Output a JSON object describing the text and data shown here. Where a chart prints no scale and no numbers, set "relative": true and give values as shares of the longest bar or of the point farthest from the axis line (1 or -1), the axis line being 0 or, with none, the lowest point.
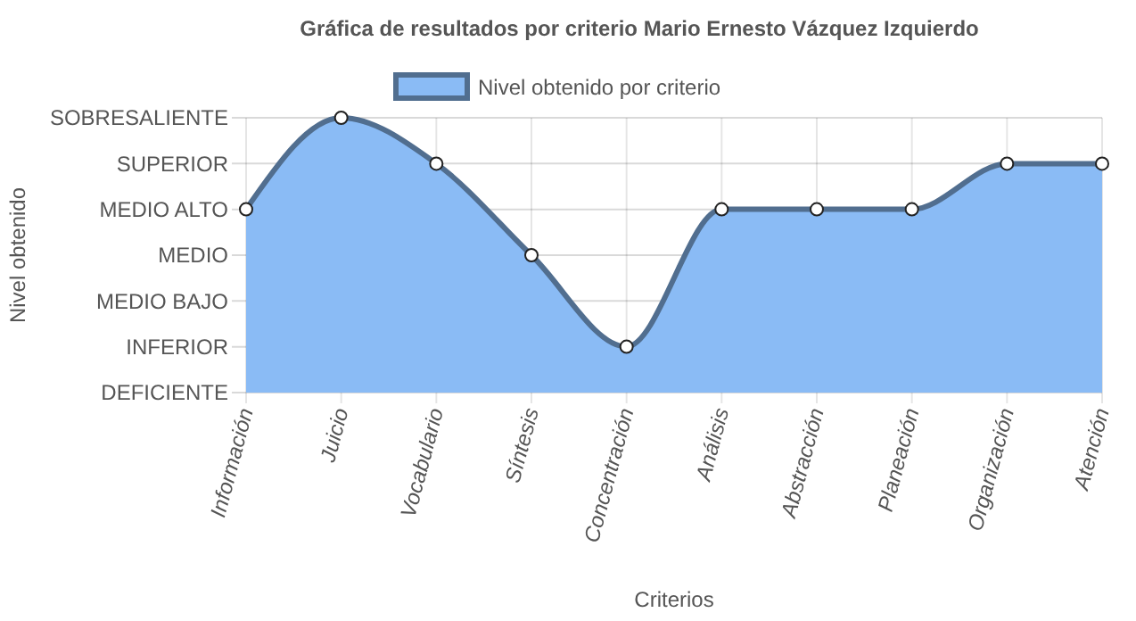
{
  "chart_data": {
    "type": "area",
    "title": "Gráfica de resultados por criterio Mario Ernesto Vázquez Izquierdo",
    "xlabel": "Criterios",
    "categories": [
      "Información",
      "Juicio",
      "Vocabulario",
      "Síntesis",
      "Concentración",
      "Análisis",
      "Abstracción",
      "Planeación",
      "Organización",
      "Atención"
    ],
    "series": [
      {
        "name": "Nivel obtenido por criterio",
        "color": "#8abbf5",
        "values": [
          0.667,
          1,
          0.833,
          0.5,
          0.167,
          0.667,
          0.667,
          0.667,
          0.833,
          0.833
        ]
      }
    ],
    "relative": true,
    "annotations": [
      "DEFICIENTE",
      "INFERIOR",
      "MEDIO BAJO",
      "MEDIO",
      "MEDIO ALTO",
      "SUPERIOR",
      "SOBRESALIENTE",
      "Nivel obtenido"
    ],
    "grid": true,
    "legend": "top",
    "marker": "circle",
    "line_style": "solid"
  }
}
